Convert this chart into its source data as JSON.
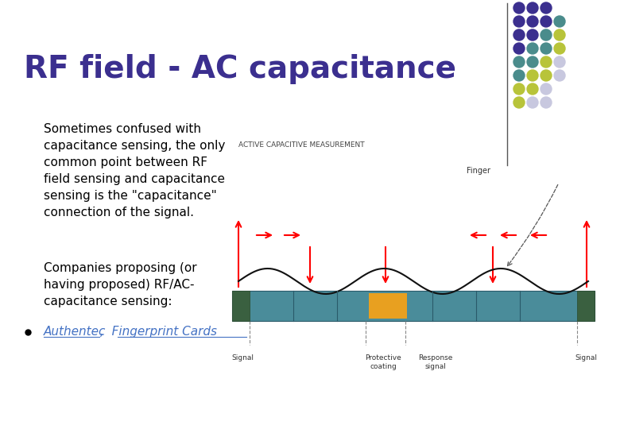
{
  "title": "RF field - AC capacitance",
  "title_color": "#3B2F8F",
  "title_fontsize": 28,
  "title_fontweight": "bold",
  "bg_color": "#FFFFFF",
  "body_text_1": "Sometimes confused with\ncapacitance sensing, the only\ncommon point between RF\nfield sensing and capacitance\nsensing is the \"capacitance\"\nconnection of the signal.",
  "body_text_2": "Companies proposing (or\nhaving proposed) RF/AC-\ncapacitance sensing:",
  "body_text_color": "#000000",
  "body_fontsize": 11,
  "link_text": "Authentec",
  "link_text2": ",  Fingerprint Cards",
  "link_color": "#4472C4",
  "bullet_color": "#000000",
  "dot_grid": [
    [
      "#3B2F8F",
      "#3B2F8F",
      "#3B2F8F",
      ""
    ],
    [
      "#3B2F8F",
      "#3B2F8F",
      "#3B2F8F",
      "#4A8C8C"
    ],
    [
      "#3B2F8F",
      "#3B2F8F",
      "#4A8C8C",
      "#B8C43A"
    ],
    [
      "#3B2F8F",
      "#4A8C8C",
      "#4A8C8C",
      "#B8C43A"
    ],
    [
      "#4A8C8C",
      "#4A8C8C",
      "#B8C43A",
      "#C8C8DF"
    ],
    [
      "#4A8C8C",
      "#B8C43A",
      "#B8C43A",
      "#C8C8DF"
    ],
    [
      "#B8C43A",
      "#B8C43A",
      "#C8C8DF",
      ""
    ],
    [
      "#B8C43A",
      "#C8C8DF",
      "#C8C8DF",
      ""
    ]
  ],
  "diag_label": "ACTIVE CAPACITIVE MEASUREMENT",
  "finger_label": "Finger",
  "signal_label": "Signal",
  "protective_label": "Protective\ncoating",
  "response_label": "Response\nsignal"
}
